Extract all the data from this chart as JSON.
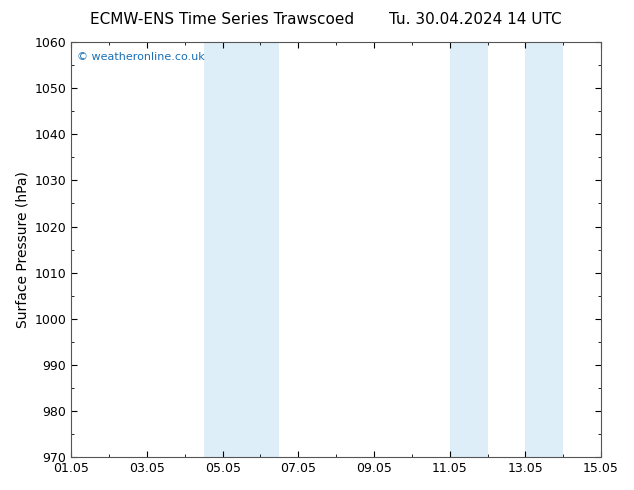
{
  "title_left": "ECMW-ENS Time Series Trawscoed",
  "title_right": "Tu. 30.04.2024 14 UTC",
  "ylabel": "Surface Pressure (hPa)",
  "ylim": [
    970,
    1060
  ],
  "yticks": [
    970,
    980,
    990,
    1000,
    1010,
    1020,
    1030,
    1040,
    1050,
    1060
  ],
  "xlim_start": 0,
  "xlim_end": 14,
  "xtick_positions": [
    0,
    2,
    4,
    6,
    8,
    10,
    12,
    14
  ],
  "xtick_labels": [
    "01.05",
    "03.05",
    "05.05",
    "07.05",
    "09.05",
    "11.05",
    "13.05",
    "15.05"
  ],
  "shaded_bands": [
    {
      "xmin": 3.5,
      "xmax": 4.5
    },
    {
      "xmin": 4.5,
      "xmax": 5.5
    },
    {
      "xmin": 10.0,
      "xmax": 11.0
    },
    {
      "xmin": 12.0,
      "xmax": 13.0
    }
  ],
  "shade_color": "#ddeef8",
  "watermark": "© weatheronline.co.uk",
  "watermark_color": "#1a6fb5",
  "background_color": "#ffffff",
  "plot_bg_color": "#ffffff",
  "title_fontsize": 11,
  "tick_fontsize": 9,
  "ylabel_fontsize": 10,
  "border_color": "#555555"
}
